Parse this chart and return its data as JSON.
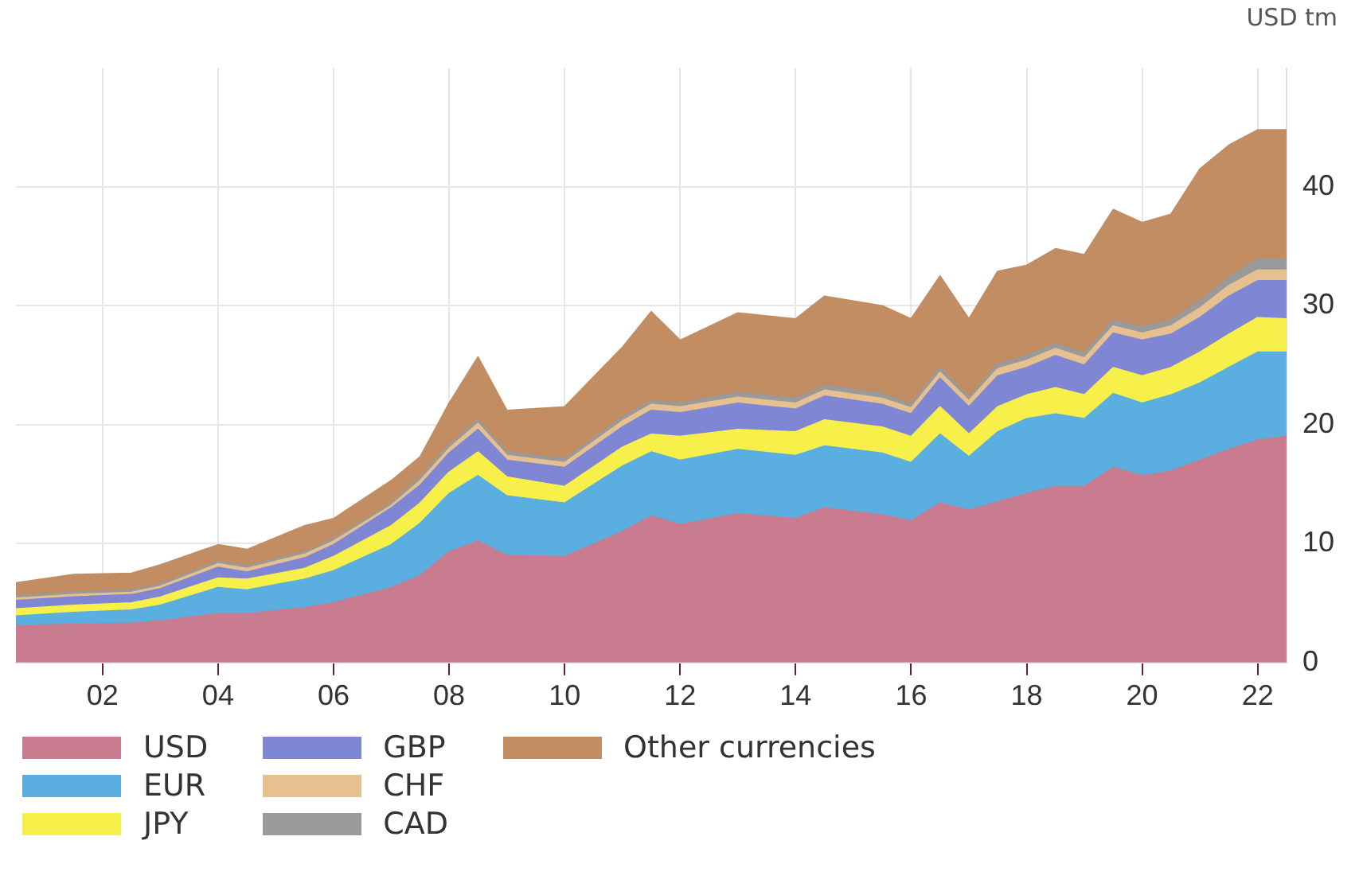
{
  "chart_data": {
    "type": "area",
    "stacked": true,
    "ylabel": "USD tm",
    "x": [
      2000.5,
      2001.5,
      2002.5,
      2003,
      2004,
      2004.5,
      2005.5,
      2006,
      2007,
      2007.5,
      2008,
      2008.5,
      2009,
      2010,
      2011,
      2011.5,
      2012,
      2013,
      2014,
      2014.5,
      2015.5,
      2016,
      2016.5,
      2017,
      2017.5,
      2018,
      2018.5,
      2019,
      2019.5,
      2020,
      2020.5,
      2021,
      2021.5,
      2022,
      2022.5
    ],
    "series": [
      {
        "name": "USD",
        "color": "#c97b8f",
        "values": [
          3.1,
          3.2,
          3.3,
          3.5,
          4.1,
          4.1,
          4.6,
          5.0,
          6.3,
          7.3,
          9.3,
          10.2,
          9.0,
          8.9,
          11.0,
          12.3,
          11.6,
          12.5,
          12.1,
          13.0,
          12.4,
          11.9,
          13.4,
          12.8,
          13.5,
          14.2,
          14.8,
          14.8,
          16.4,
          15.7,
          16.1,
          17.0,
          17.9,
          18.7,
          19.0
        ]
      },
      {
        "name": "EUR",
        "color": "#5aaee0",
        "values": [
          0.8,
          1.0,
          1.1,
          1.3,
          2.2,
          2.0,
          2.4,
          2.7,
          3.6,
          4.4,
          4.9,
          5.5,
          5.0,
          4.5,
          5.5,
          5.4,
          5.4,
          5.4,
          5.3,
          5.2,
          5.2,
          4.9,
          5.8,
          4.5,
          5.9,
          6.3,
          6.1,
          5.7,
          6.2,
          6.1,
          6.4,
          6.5,
          6.9,
          7.4,
          7.1
        ]
      },
      {
        "name": "JPY",
        "color": "#f7ef4a",
        "values": [
          0.6,
          0.6,
          0.6,
          0.7,
          0.8,
          0.9,
          0.9,
          1.2,
          1.6,
          1.7,
          1.8,
          2.0,
          1.6,
          1.4,
          1.6,
          1.5,
          2.0,
          1.7,
          2.0,
          2.2,
          2.2,
          2.2,
          2.3,
          1.9,
          2.1,
          2.0,
          2.2,
          2.0,
          2.2,
          2.3,
          2.3,
          2.6,
          2.8,
          2.9,
          2.8
        ]
      },
      {
        "name": "GBP",
        "color": "#7f86d4",
        "values": [
          0.7,
          0.7,
          0.7,
          0.7,
          0.9,
          0.6,
          0.9,
          1.0,
          1.5,
          1.5,
          1.6,
          1.9,
          1.4,
          1.6,
          1.7,
          2.0,
          2.0,
          2.2,
          1.9,
          2.0,
          1.9,
          1.9,
          2.4,
          2.3,
          2.6,
          2.3,
          2.7,
          2.5,
          2.9,
          3.0,
          2.8,
          2.9,
          3.2,
          3.1,
          3.2
        ]
      },
      {
        "name": "CHF",
        "color": "#e6c08f",
        "values": [
          0.2,
          0.2,
          0.2,
          0.2,
          0.3,
          0.3,
          0.3,
          0.3,
          0.2,
          0.4,
          0.4,
          0.5,
          0.4,
          0.4,
          0.5,
          0.5,
          0.5,
          0.5,
          0.5,
          0.5,
          0.5,
          0.5,
          0.5,
          0.5,
          0.6,
          0.6,
          0.6,
          0.6,
          0.6,
          0.6,
          0.7,
          0.8,
          0.9,
          0.9,
          0.9
        ]
      },
      {
        "name": "CAD",
        "color": "#9a9a9a",
        "values": [
          0.2,
          0.2,
          0.2,
          0.2,
          0.2,
          0.2,
          0.2,
          0.2,
          0.2,
          0.3,
          0.3,
          0.3,
          0.3,
          0.3,
          0.3,
          0.3,
          0.3,
          0.4,
          0.4,
          0.4,
          0.4,
          0.3,
          0.4,
          0.3,
          0.4,
          0.4,
          0.4,
          0.4,
          0.5,
          0.5,
          0.5,
          0.6,
          0.7,
          0.9,
          0.9
        ]
      },
      {
        "name": "Other currencies",
        "color": "#c28d62",
        "values": [
          1.1,
          1.5,
          1.4,
          1.6,
          1.4,
          1.4,
          2.2,
          1.7,
          1.9,
          1.7,
          3.5,
          5.3,
          3.5,
          4.4,
          5.9,
          7.5,
          5.3,
          6.7,
          6.7,
          7.5,
          7.4,
          7.2,
          7.7,
          6.6,
          7.8,
          7.6,
          8.0,
          8.3,
          9.3,
          8.8,
          8.9,
          11.1,
          11.1,
          10.9,
          10.9
        ]
      }
    ],
    "xlim": [
      2000.5,
      2022.5
    ],
    "xticks": [
      {
        "value": 2002,
        "label": "02"
      },
      {
        "value": 2004,
        "label": "04"
      },
      {
        "value": 2006,
        "label": "06"
      },
      {
        "value": 2008,
        "label": "08"
      },
      {
        "value": 2010,
        "label": "10"
      },
      {
        "value": 2012,
        "label": "12"
      },
      {
        "value": 2014,
        "label": "14"
      },
      {
        "value": 2016,
        "label": "16"
      },
      {
        "value": 2018,
        "label": "18"
      },
      {
        "value": 2020,
        "label": "20"
      },
      {
        "value": 2022,
        "label": "22"
      }
    ],
    "ylim": [
      0,
      50
    ],
    "yticks": [
      0,
      10,
      20,
      30,
      40
    ],
    "grid": true,
    "legend": "bottom"
  }
}
